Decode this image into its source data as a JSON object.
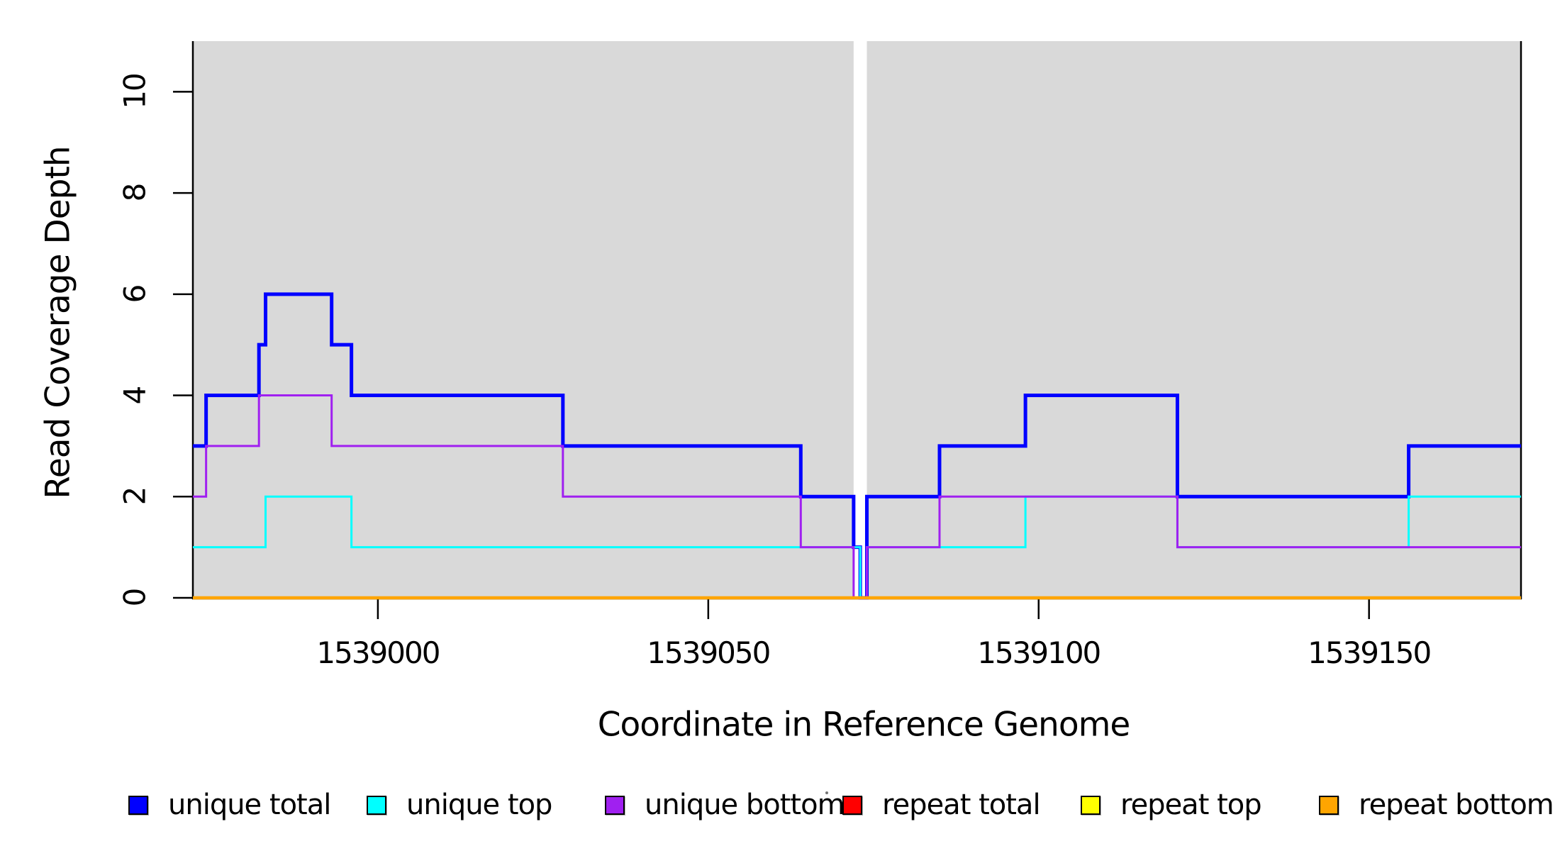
{
  "figure": {
    "x_axis_label": "Coordinate in Reference Genome",
    "y_axis_label": "Read Coverage Depth",
    "x_tick_labels": [
      "1539000",
      "1539050",
      "1539100",
      "1539150"
    ],
    "y_tick_labels": [
      "0",
      "2",
      "4",
      "6",
      "8",
      "10"
    ]
  },
  "legend": {
    "items": [
      {
        "label": "unique total",
        "color": "#0000ff"
      },
      {
        "label": "unique top",
        "color": "#00ffff"
      },
      {
        "label": "unique bottom",
        "color": "#a020f0"
      },
      {
        "label": "repeat total",
        "color": "#ff0000"
      },
      {
        "label": "repeat top",
        "color": "#ffff00"
      },
      {
        "label": "repeat bottom",
        "color": "#ffa500"
      }
    ]
  },
  "chart_data": {
    "type": "line",
    "subtype": "stairstep-coverage",
    "title": "",
    "xlabel": "Coordinate in Reference Genome",
    "ylabel": "Read Coverage Depth",
    "xlim": [
      1538972,
      1539173
    ],
    "ylim": [
      0,
      11
    ],
    "x_ticks": [
      1539000,
      1539050,
      1539100,
      1539150
    ],
    "y_ticks": [
      0,
      2,
      4,
      6,
      8,
      10
    ],
    "grid": false,
    "legend_position": "bottom",
    "background": {
      "plot_color": "#d9d9d9",
      "covered_segments": [
        [
          1538972,
          1539072
        ],
        [
          1539074,
          1539173
        ]
      ],
      "uncovered_gap": [
        1539072,
        1539074
      ]
    },
    "series": [
      {
        "name": "unique total",
        "color": "#0000ff",
        "line_width": 5,
        "steps": [
          [
            1538972,
            3
          ],
          [
            1538974,
            4
          ],
          [
            1538982,
            5
          ],
          [
            1538983,
            6
          ],
          [
            1538993,
            5
          ],
          [
            1538996,
            4
          ],
          [
            1539028,
            3
          ],
          [
            1539064,
            2
          ],
          [
            1539072,
            1
          ],
          [
            1539073,
            0
          ],
          [
            1539074,
            2
          ],
          [
            1539085,
            3
          ],
          [
            1539098,
            4
          ],
          [
            1539121,
            2
          ],
          [
            1539156,
            3
          ]
        ],
        "end_x": 1539173
      },
      {
        "name": "unique top",
        "color": "#00ffff",
        "line_width": 3,
        "steps": [
          [
            1538972,
            1
          ],
          [
            1538983,
            2
          ],
          [
            1538996,
            1
          ],
          [
            1539073,
            0
          ],
          [
            1539074,
            1
          ],
          [
            1539098,
            2
          ],
          [
            1539121,
            1
          ],
          [
            1539156,
            2
          ]
        ],
        "end_x": 1539173
      },
      {
        "name": "unique bottom",
        "color": "#a020f0",
        "line_width": 3,
        "steps": [
          [
            1538972,
            2
          ],
          [
            1538974,
            3
          ],
          [
            1538982,
            4
          ],
          [
            1538993,
            3
          ],
          [
            1539028,
            2
          ],
          [
            1539064,
            1
          ],
          [
            1539072,
            0
          ],
          [
            1539074,
            1
          ],
          [
            1539085,
            2
          ],
          [
            1539121,
            1
          ]
        ],
        "end_x": 1539173
      },
      {
        "name": "repeat total",
        "color": "#ff0000",
        "line_width": 3,
        "steps": [
          [
            1538972,
            0
          ]
        ],
        "end_x": 1539173
      },
      {
        "name": "repeat top",
        "color": "#ffff00",
        "line_width": 3,
        "steps": [
          [
            1538972,
            0
          ]
        ],
        "end_x": 1539173
      },
      {
        "name": "repeat bottom",
        "color": "#ffa500",
        "line_width": 4.5,
        "steps": [
          [
            1538972,
            0
          ]
        ],
        "end_x": 1539173
      }
    ]
  }
}
